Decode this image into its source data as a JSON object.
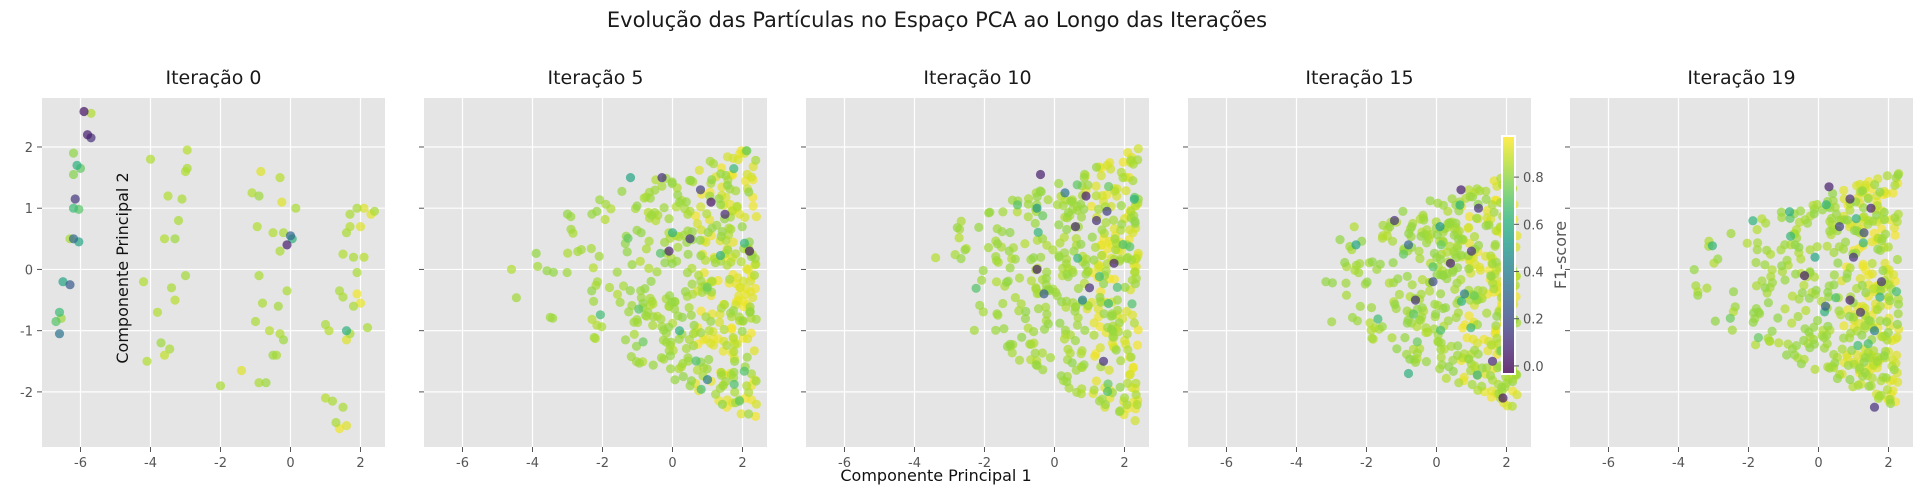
{
  "figure": {
    "title": "Evolução das Partículas no Espaço PCA ao Longo das Iterações",
    "xlabel": "Componente Principal 1",
    "ylabel": "Componente Principal 2"
  },
  "colorbar": {
    "label": "F1-score",
    "ticks": [
      "0.0",
      "0.2",
      "0.4",
      "0.6",
      "0.8"
    ],
    "range": [
      -0.03,
      0.97
    ],
    "colormap": "viridis",
    "marker_alpha": 0.7
  },
  "axes": {
    "xlim": [
      -7.1,
      2.7
    ],
    "ylim": [
      -2.9,
      2.8
    ],
    "xticks": [
      "-6",
      "-4",
      "-2",
      "0",
      "2"
    ],
    "yticks": [
      "-2",
      "-1",
      "0",
      "1",
      "2"
    ],
    "background": "#e5e5e5",
    "grid": true
  },
  "chart_data": [
    {
      "type": "scatter",
      "title": "Iteração 0",
      "points": [
        [
          -5.9,
          2.58,
          0.02
        ],
        [
          -5.7,
          2.55,
          0.85
        ],
        [
          -5.8,
          2.2,
          0.05
        ],
        [
          -5.7,
          2.15,
          0.1
        ],
        [
          -6.2,
          1.9,
          0.8
        ],
        [
          -6.1,
          1.7,
          0.6
        ],
        [
          -6.0,
          1.65,
          0.72
        ],
        [
          -6.2,
          1.55,
          0.78
        ],
        [
          -6.15,
          1.15,
          0.12
        ],
        [
          -6.2,
          1.0,
          0.65
        ],
        [
          -6.05,
          0.98,
          0.7
        ],
        [
          -6.3,
          0.5,
          0.84
        ],
        [
          -6.2,
          0.5,
          0.3
        ],
        [
          -6.05,
          0.45,
          0.55
        ],
        [
          -6.3,
          -0.25,
          0.25
        ],
        [
          -6.5,
          -0.2,
          0.55
        ],
        [
          -6.6,
          -0.7,
          0.65
        ],
        [
          -6.55,
          -0.8,
          0.82
        ],
        [
          -6.7,
          -0.85,
          0.7
        ],
        [
          -6.6,
          -1.05,
          0.35
        ],
        [
          -4.0,
          1.8,
          0.85
        ],
        [
          -4.2,
          -0.2,
          0.85
        ],
        [
          -4.1,
          -1.5,
          0.85
        ],
        [
          -3.8,
          -0.7,
          0.85
        ],
        [
          -3.7,
          -1.2,
          0.82
        ],
        [
          -3.6,
          -1.4,
          0.88
        ],
        [
          -3.45,
          -1.3,
          0.84
        ],
        [
          -3.5,
          1.2,
          0.85
        ],
        [
          -3.4,
          -0.3,
          0.84
        ],
        [
          -3.3,
          -0.5,
          0.86
        ],
        [
          -3.2,
          0.8,
          0.84
        ],
        [
          -3.0,
          -0.1,
          0.83
        ],
        [
          -3.1,
          1.15,
          0.84
        ],
        [
          -3.0,
          1.6,
          0.85
        ],
        [
          -2.95,
          1.65,
          0.84
        ],
        [
          -2.95,
          1.95,
          0.86
        ],
        [
          -3.6,
          0.5,
          0.85
        ],
        [
          -3.3,
          0.5,
          0.82
        ],
        [
          -2.0,
          -1.9,
          0.84
        ],
        [
          -1.4,
          -1.65,
          0.92
        ],
        [
          -1.1,
          1.25,
          0.85
        ],
        [
          -0.9,
          1.2,
          0.82
        ],
        [
          -0.85,
          1.6,
          0.92
        ],
        [
          -0.95,
          0.7,
          0.85
        ],
        [
          -0.9,
          -0.1,
          0.84
        ],
        [
          -0.8,
          -0.55,
          0.84
        ],
        [
          -1.0,
          -0.85,
          0.84
        ],
        [
          -0.6,
          -1.0,
          0.86
        ],
        [
          -0.5,
          -1.4,
          0.82
        ],
        [
          -0.9,
          -1.85,
          0.84
        ],
        [
          -0.7,
          -1.85,
          0.82
        ],
        [
          -0.3,
          1.5,
          0.86
        ],
        [
          -0.25,
          1.1,
          0.92
        ],
        [
          -0.2,
          0.6,
          0.84
        ],
        [
          -0.3,
          0.3,
          0.84
        ],
        [
          -0.35,
          -0.6,
          0.83
        ],
        [
          -0.3,
          -1.05,
          0.85
        ],
        [
          -0.4,
          -1.4,
          0.84
        ],
        [
          -0.1,
          0.4,
          0.05
        ],
        [
          0.0,
          0.55,
          0.3
        ],
        [
          0.05,
          0.5,
          0.6
        ],
        [
          0.15,
          1.0,
          0.84
        ],
        [
          -0.5,
          0.6,
          0.85
        ],
        [
          -0.1,
          -0.35,
          0.84
        ],
        [
          -0.2,
          -1.15,
          0.82
        ],
        [
          1.0,
          -0.9,
          0.84
        ],
        [
          1.1,
          -1.0,
          0.86
        ],
        [
          1.2,
          -2.15,
          0.84
        ],
        [
          1.0,
          -2.1,
          0.86
        ],
        [
          1.3,
          -2.5,
          0.84
        ],
        [
          1.6,
          -2.55,
          0.92
        ],
        [
          1.4,
          -2.6,
          0.95
        ],
        [
          1.5,
          -2.25,
          0.84
        ],
        [
          1.6,
          -1.0,
          0.6
        ],
        [
          1.7,
          -1.05,
          0.84
        ],
        [
          1.6,
          -1.15,
          0.92
        ],
        [
          1.4,
          -0.35,
          0.84
        ],
        [
          1.5,
          -0.45,
          0.84
        ],
        [
          1.5,
          0.25,
          0.85
        ],
        [
          1.6,
          0.6,
          0.84
        ],
        [
          1.8,
          0.2,
          0.84
        ],
        [
          1.9,
          -0.05,
          0.84
        ],
        [
          2.0,
          -0.55,
          0.94
        ],
        [
          1.9,
          -0.4,
          0.95
        ],
        [
          2.1,
          0.2,
          0.86
        ],
        [
          1.9,
          1.0,
          0.84
        ],
        [
          2.1,
          1.0,
          0.92
        ],
        [
          2.3,
          0.9,
          0.93
        ],
        [
          2.4,
          0.95,
          0.84
        ],
        [
          1.7,
          0.9,
          0.84
        ],
        [
          1.7,
          0.7,
          0.86
        ],
        [
          2.2,
          -0.95,
          0.84
        ],
        [
          2.0,
          0.7,
          0.92
        ],
        [
          1.8,
          -0.6,
          0.84
        ]
      ]
    },
    {
      "type": "scatter",
      "title": "Iteração 5",
      "seed": 5,
      "n": 430,
      "xmin": -4.6,
      "xmax": 2.4,
      "ymin": -2.5,
      "ymax": 2.1,
      "dense_right": 1.0,
      "extra": [
        [
          -4.6,
          0.0,
          0.85
        ],
        [
          -0.3,
          1.5,
          0.1
        ],
        [
          -0.1,
          0.3,
          0.05
        ],
        [
          0.5,
          0.5,
          0.1
        ],
        [
          1.1,
          1.1,
          0.02
        ],
        [
          1.5,
          0.9,
          0.08
        ],
        [
          2.2,
          0.3,
          0.05
        ],
        [
          1.0,
          -1.8,
          0.4
        ],
        [
          0.2,
          -1.0,
          0.6
        ],
        [
          -1.2,
          1.5,
          0.55
        ],
        [
          0.0,
          0.6,
          0.6
        ],
        [
          0.8,
          1.3,
          0.15
        ]
      ]
    },
    {
      "type": "scatter",
      "title": "Iteração 10",
      "seed": 10,
      "n": 420,
      "xmin": -3.7,
      "xmax": 2.4,
      "ymin": -2.6,
      "ymax": 2.0,
      "dense_right": 1.1,
      "extra": [
        [
          -0.4,
          1.55,
          0.05
        ],
        [
          -0.5,
          0.0,
          0.05
        ],
        [
          0.3,
          1.25,
          0.35
        ],
        [
          0.9,
          1.2,
          0.05
        ],
        [
          1.2,
          0.8,
          0.1
        ],
        [
          1.7,
          0.1,
          0.05
        ],
        [
          -0.3,
          -0.4,
          0.25
        ],
        [
          0.8,
          -0.5,
          0.4
        ],
        [
          1.4,
          -1.5,
          0.1
        ],
        [
          0.6,
          0.7,
          0.08
        ],
        [
          1.0,
          -0.3,
          0.1
        ],
        [
          -0.5,
          1.0,
          0.5
        ],
        [
          1.5,
          0.95,
          0.15
        ]
      ]
    },
    {
      "type": "scatter",
      "title": "Iteração 15",
      "seed": 15,
      "n": 440,
      "xmin": -4.3,
      "xmax": 2.3,
      "ymin": -2.3,
      "ymax": 1.6,
      "dense_right": 1.2,
      "extra": [
        [
          -1.2,
          0.8,
          0.1
        ],
        [
          -0.8,
          0.4,
          0.3
        ],
        [
          -0.6,
          -0.5,
          0.1
        ],
        [
          0.4,
          0.1,
          0.05
        ],
        [
          0.7,
          1.3,
          0.05
        ],
        [
          1.2,
          1.0,
          0.1
        ],
        [
          1.9,
          -2.1,
          0.02
        ],
        [
          1.6,
          -1.5,
          0.08
        ],
        [
          -0.1,
          -0.2,
          0.2
        ],
        [
          0.8,
          -0.4,
          0.4
        ],
        [
          -2.3,
          0.4,
          0.55
        ],
        [
          -0.8,
          -1.7,
          0.6
        ],
        [
          1.0,
          0.3,
          0.1
        ],
        [
          0.1,
          0.7,
          0.5
        ]
      ]
    },
    {
      "type": "scatter",
      "title": "Iteração 19",
      "seed": 19,
      "n": 430,
      "xmin": -4.3,
      "xmax": 2.3,
      "ymin": -2.3,
      "ymax": 1.6,
      "dense_right": 1.2,
      "extra": [
        [
          -0.4,
          -0.1,
          0.05
        ],
        [
          0.3,
          1.35,
          0.05
        ],
        [
          0.9,
          1.15,
          0.08
        ],
        [
          1.5,
          1.0,
          0.05
        ],
        [
          1.6,
          -2.25,
          0.1
        ],
        [
          0.9,
          -0.5,
          0.05
        ],
        [
          1.2,
          -0.7,
          0.1
        ],
        [
          1.6,
          -1.0,
          0.4
        ],
        [
          -0.1,
          0.2,
          0.55
        ],
        [
          0.6,
          0.7,
          0.15
        ],
        [
          1.0,
          0.2,
          0.1
        ],
        [
          0.2,
          -0.6,
          0.25
        ],
        [
          1.3,
          0.6,
          0.2
        ],
        [
          1.8,
          -0.2,
          0.1
        ]
      ]
    }
  ]
}
